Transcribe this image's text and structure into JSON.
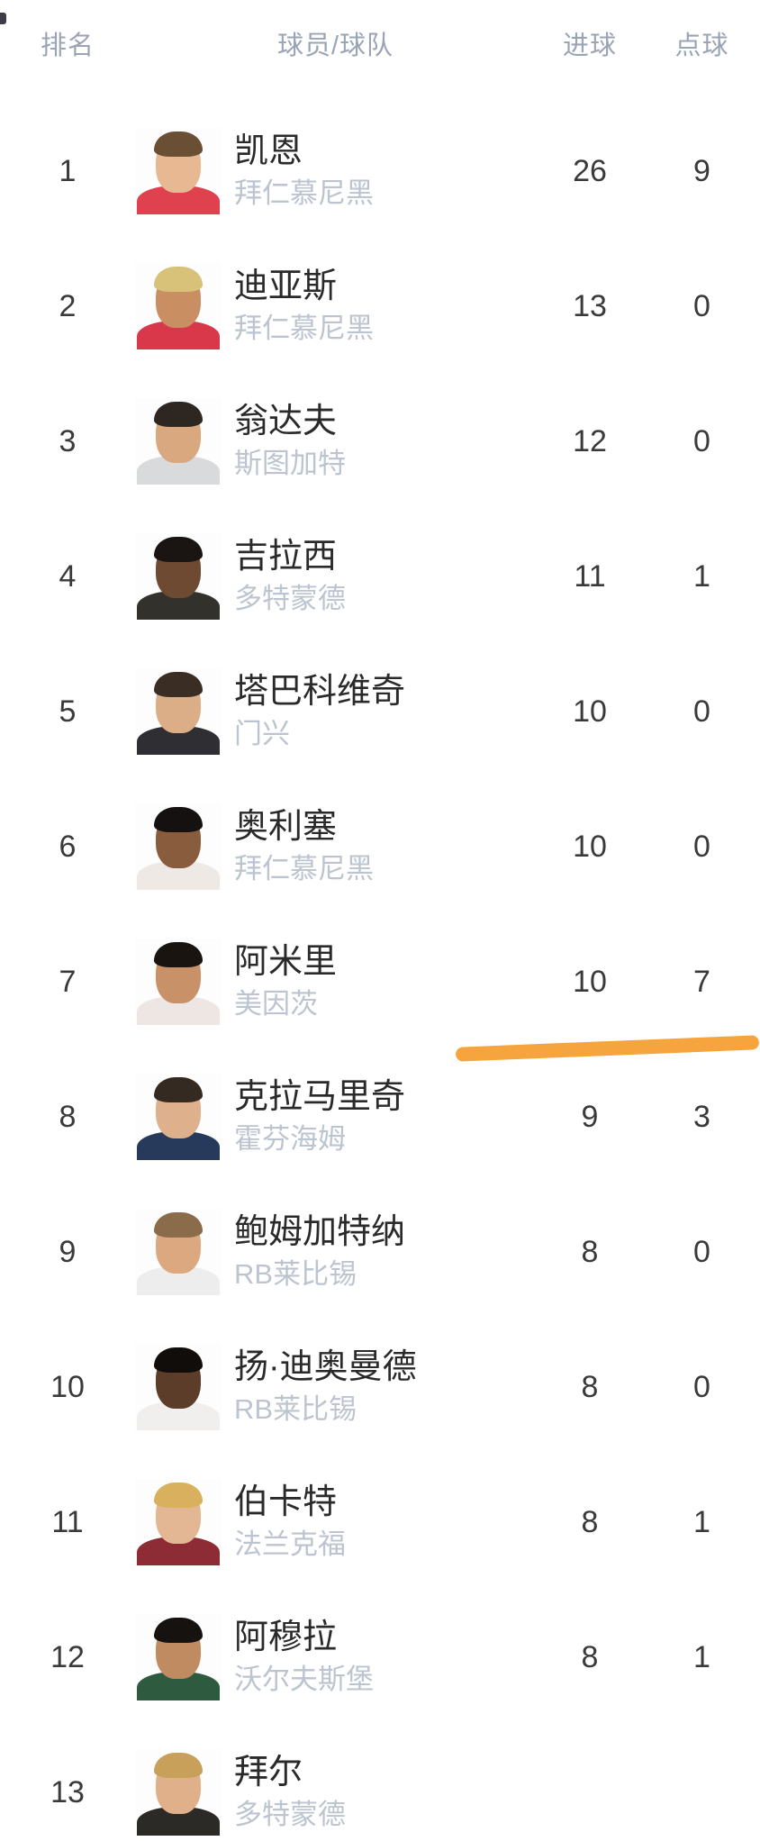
{
  "table": {
    "columns": {
      "rank": "排名",
      "player": "球员/球队",
      "goals": "进球",
      "penalties": "点球"
    }
  },
  "players": [
    {
      "rank": "1",
      "name": "凯恩",
      "team": "拜仁慕尼黑",
      "goals": "26",
      "penalties": "9",
      "avatar_style": "--skin:#e8b893;--hair:#6b4f35;--jersey:#e0414f"
    },
    {
      "rank": "2",
      "name": "迪亚斯",
      "team": "拜仁慕尼黑",
      "goals": "13",
      "penalties": "0",
      "avatar_style": "--skin:#c98e62;--hair:#d8c27a;--jersey:#d9374a"
    },
    {
      "rank": "3",
      "name": "翁达夫",
      "team": "斯图加特",
      "goals": "12",
      "penalties": "0",
      "avatar_style": "--skin:#d9a87e;--hair:#2e2620;--jersey:#d8dadc"
    },
    {
      "rank": "4",
      "name": "吉拉西",
      "team": "多特蒙德",
      "goals": "11",
      "penalties": "1",
      "avatar_style": "--skin:#6e4a33;--hair:#1a1512;--jersey:#33312c"
    },
    {
      "rank": "5",
      "name": "塔巴科维奇",
      "team": "门兴",
      "goals": "10",
      "penalties": "0",
      "avatar_style": "--skin:#dcae88;--hair:#3a2e24;--jersey:#2f2f33"
    },
    {
      "rank": "6",
      "name": "奥利塞",
      "team": "拜仁慕尼黑",
      "goals": "10",
      "penalties": "0",
      "avatar_style": "--skin:#8a5c3e;--hair:#141110;--jersey:#efe9e6"
    },
    {
      "rank": "7",
      "name": "阿米里",
      "team": "美因茨",
      "goals": "10",
      "penalties": "7",
      "avatar_style": "--skin:#c89168;--hair:#191410;--jersey:#ede6e2"
    },
    {
      "rank": "8",
      "name": "克拉马里奇",
      "team": "霍芬海姆",
      "goals": "9",
      "penalties": "3",
      "avatar_style": "--skin:#deb08c;--hair:#352a22;--jersey:#273a5c"
    },
    {
      "rank": "9",
      "name": "鲍姆加特纳",
      "team": "RB莱比锡",
      "goals": "8",
      "penalties": "0",
      "avatar_style": "--skin:#dca87f;--hair:#8a6b4a;--jersey:#ededed"
    },
    {
      "rank": "10",
      "name": "扬·迪奥曼德",
      "team": "RB莱比锡",
      "goals": "8",
      "penalties": "0",
      "avatar_style": "--skin:#5c3d2a;--hair:#100d0b;--jersey:#f0efed"
    },
    {
      "rank": "11",
      "name": "伯卡特",
      "team": "法兰克福",
      "goals": "8",
      "penalties": "1",
      "avatar_style": "--skin:#e3b793;--hair:#d9b05e;--jersey:#8e2c35"
    },
    {
      "rank": "12",
      "name": "阿穆拉",
      "team": "沃尔夫斯堡",
      "goals": "8",
      "penalties": "1",
      "avatar_style": "--skin:#c08b61;--hair:#161210;--jersey:#2e5b3f"
    },
    {
      "rank": "13",
      "name": "拜尔",
      "team": "多特蒙德",
      "goals": "",
      "penalties": "",
      "avatar_style": "--skin:#e0b08a;--hair:#c9a05a;--jersey:#2b2a26"
    }
  ],
  "highlight": {
    "color": "#F6A43D",
    "style": "background:#F6A43D"
  }
}
